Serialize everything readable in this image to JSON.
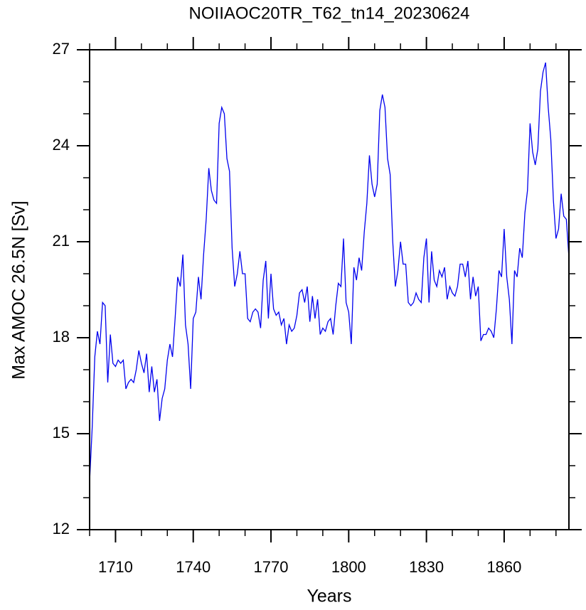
{
  "chart_data": {
    "type": "line",
    "title": "NOIIAOC20TR_T62_tn14_20230624",
    "xlabel": "Years",
    "ylabel": "Max AMOC 26.5N [Sv]",
    "x": [
      1700,
      1701,
      1702,
      1703,
      1704,
      1705,
      1706,
      1707,
      1708,
      1709,
      1710,
      1711,
      1712,
      1713,
      1714,
      1715,
      1716,
      1717,
      1718,
      1719,
      1720,
      1721,
      1722,
      1723,
      1724,
      1725,
      1726,
      1727,
      1728,
      1729,
      1730,
      1731,
      1732,
      1733,
      1734,
      1735,
      1736,
      1737,
      1738,
      1739,
      1740,
      1741,
      1742,
      1743,
      1744,
      1745,
      1746,
      1747,
      1748,
      1749,
      1750,
      1751,
      1752,
      1753,
      1754,
      1755,
      1756,
      1757,
      1758,
      1759,
      1760,
      1761,
      1762,
      1763,
      1764,
      1765,
      1766,
      1767,
      1768,
      1769,
      1770,
      1771,
      1772,
      1773,
      1774,
      1775,
      1776,
      1777,
      1778,
      1779,
      1780,
      1781,
      1782,
      1783,
      1784,
      1785,
      1786,
      1787,
      1788,
      1789,
      1790,
      1791,
      1792,
      1793,
      1794,
      1795,
      1796,
      1797,
      1798,
      1799,
      1800,
      1801,
      1802,
      1803,
      1804,
      1805,
      1806,
      1807,
      1808,
      1809,
      1810,
      1811,
      1812,
      1813,
      1814,
      1815,
      1816,
      1817,
      1818,
      1819,
      1820,
      1821,
      1822,
      1823,
      1824,
      1825,
      1826,
      1827,
      1828,
      1829,
      1830,
      1831,
      1832,
      1833,
      1834,
      1835,
      1836,
      1837,
      1838,
      1839,
      1840,
      1841,
      1842,
      1843,
      1844,
      1845,
      1846,
      1847,
      1848,
      1849,
      1850,
      1851,
      1852,
      1853,
      1854,
      1855,
      1856,
      1857,
      1858,
      1859,
      1860,
      1861,
      1862,
      1863,
      1864,
      1865,
      1866,
      1867,
      1868,
      1869,
      1870,
      1871,
      1872,
      1873,
      1874,
      1875,
      1876,
      1877,
      1878,
      1879,
      1880,
      1881,
      1882,
      1883,
      1884,
      1885
    ],
    "series": [
      {
        "name": "Max AMOC",
        "color": "#0000ee",
        "values": [
          13.5,
          15.2,
          17.4,
          18.2,
          17.8,
          19.1,
          19.0,
          16.6,
          18.1,
          17.2,
          17.1,
          17.3,
          17.2,
          17.3,
          16.4,
          16.6,
          16.7,
          16.6,
          17.0,
          17.6,
          17.2,
          16.9,
          17.5,
          16.3,
          17.1,
          16.3,
          16.7,
          15.4,
          16.1,
          16.4,
          17.3,
          17.8,
          17.4,
          18.6,
          19.9,
          19.6,
          20.6,
          18.4,
          17.8,
          16.4,
          18.6,
          18.8,
          19.9,
          19.2,
          20.6,
          21.7,
          23.3,
          22.6,
          22.3,
          22.2,
          24.7,
          25.2,
          25.0,
          23.6,
          23.2,
          20.8,
          19.6,
          20.0,
          20.7,
          20.0,
          20.0,
          18.6,
          18.5,
          18.8,
          18.9,
          18.8,
          18.3,
          19.8,
          20.4,
          18.6,
          20.0,
          18.9,
          18.7,
          18.8,
          18.4,
          18.6,
          17.8,
          18.4,
          18.2,
          18.3,
          18.7,
          19.4,
          19.5,
          19.1,
          19.6,
          18.5,
          19.3,
          18.6,
          19.2,
          18.1,
          18.3,
          18.2,
          18.5,
          18.6,
          18.1,
          19.0,
          19.7,
          19.6,
          21.1,
          19.1,
          18.8,
          17.8,
          20.2,
          19.8,
          20.5,
          20.1,
          21.3,
          22.2,
          23.7,
          22.8,
          22.4,
          22.8,
          25.1,
          25.6,
          25.2,
          23.6,
          23.1,
          21.0,
          19.6,
          20.1,
          21.0,
          20.3,
          20.3,
          19.1,
          19.0,
          19.1,
          19.4,
          19.2,
          19.1,
          20.5,
          21.1,
          19.1,
          20.7,
          19.8,
          19.6,
          20.1,
          19.9,
          20.2,
          19.2,
          19.6,
          19.4,
          19.3,
          19.6,
          20.3,
          20.3,
          19.9,
          20.4,
          19.2,
          19.9,
          19.3,
          19.6,
          17.9,
          18.1,
          18.1,
          18.3,
          18.2,
          18.0,
          18.9,
          20.1,
          19.9,
          21.4,
          19.9,
          19.2,
          17.8,
          20.1,
          19.9,
          20.8,
          20.5,
          21.9,
          22.6,
          24.7,
          23.8,
          23.4,
          23.9,
          25.7,
          26.3,
          26.6,
          25.2,
          24.2,
          22.3,
          21.1,
          21.4,
          22.5,
          21.8,
          21.7,
          20.5
        ]
      }
    ],
    "xlim": [
      1700,
      1885
    ],
    "ylim": [
      12,
      27
    ],
    "xticks": [
      1710,
      1740,
      1770,
      1800,
      1830,
      1860
    ],
    "yticks": [
      12,
      15,
      18,
      21,
      24,
      27
    ],
    "xminorticks": [
      1700,
      1720,
      1730,
      1750,
      1760,
      1780,
      1790,
      1810,
      1820,
      1840,
      1850,
      1870,
      1880
    ],
    "yminorticks": [
      13,
      14,
      16,
      17,
      19,
      20,
      22,
      23,
      25,
      26
    ]
  }
}
